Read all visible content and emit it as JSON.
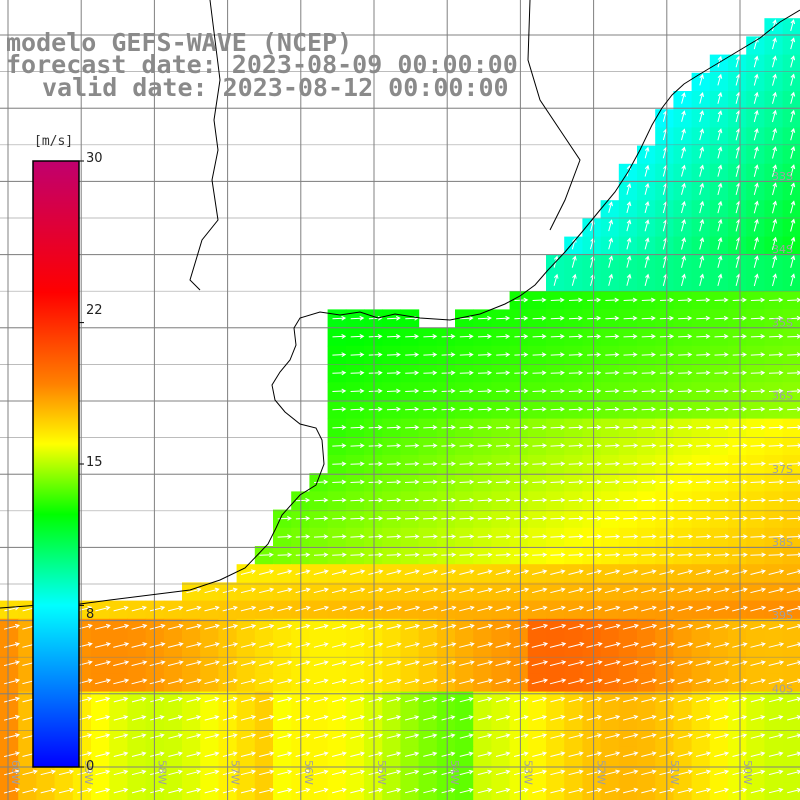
{
  "title": {
    "model": "modelo GEFS-WAVE (NCEP)",
    "forecast": "forecast date: 2023-08-09 00:00:00",
    "valid": "valid date: 2023-08-12 00:00:00"
  },
  "legend": {
    "unit": "[m/s]",
    "min": 0,
    "max": 30,
    "ticks": [
      "30",
      "22",
      "15",
      "8",
      "0"
    ],
    "tick_values": [
      30,
      22,
      15,
      8,
      0
    ],
    "colors": [
      "#0000ff",
      "#00ffff",
      "#00ff00",
      "#ffff00",
      "#ff8000",
      "#ff0000",
      "#c0006e"
    ]
  },
  "axes": {
    "lat_labels": [
      "33S",
      "34S",
      "35S",
      "36S",
      "37S",
      "38S",
      "39S",
      "40S"
    ],
    "lon_labels": [
      "60W",
      "59W",
      "58W",
      "57W",
      "56W",
      "55W",
      "54W",
      "53W",
      "52W",
      "51W",
      "50W"
    ]
  },
  "colors": {
    "land": "#ffffff",
    "coast": "#000000",
    "grid": "#808080",
    "arrows": "#ffffff"
  }
}
